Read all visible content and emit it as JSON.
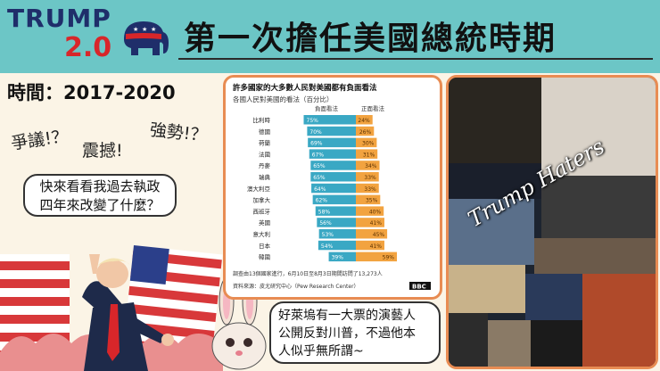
{
  "header": {
    "logo_word": "TRUMP",
    "logo_version": "2.0",
    "title": "第一次擔任美國總統時期"
  },
  "period": "時間：2017-2020",
  "shouts": [
    "爭議!？",
    "震撼!",
    "強勢!？"
  ],
  "speech_bubble": [
    "快來看看我過去執政",
    "四年來改變了什麼？"
  ],
  "rabbit_bubble": [
    "好萊塢有一大票的演藝人",
    "公開反對川普，不過他本",
    "人似乎無所謂~"
  ],
  "haters_label": "Trump Haters",
  "colors": {
    "negative": "#3aa8c4",
    "positive": "#f2a340",
    "accent": "#e88c53",
    "header": "#6cc6c6"
  },
  "chart_data": {
    "type": "bar",
    "title": "許多國家的大多數人民對美國都有負面看法",
    "subtitle": "各國人民對美國的看法（百分比）",
    "legend": [
      "負面看法",
      "正面看法"
    ],
    "categories": [
      "比利時",
      "德國",
      "荷蘭",
      "法國",
      "丹麥",
      "瑞典",
      "澳大利亞",
      "加拿大",
      "西班牙",
      "英國",
      "意大利",
      "日本",
      "韓國"
    ],
    "series": [
      {
        "name": "負面看法",
        "values": [
          75,
          70,
          69,
          67,
          65,
          65,
          64,
          62,
          58,
          56,
          53,
          54,
          39
        ]
      },
      {
        "name": "正面看法",
        "values": [
          24,
          26,
          30,
          31,
          34,
          33,
          33,
          35,
          40,
          41,
          45,
          41,
          59
        ]
      }
    ],
    "value_labels_neg": [
      "75%",
      "70%",
      "69%",
      "67%",
      "65%",
      "65%",
      "64%",
      "62%",
      "58%",
      "56%",
      "53%",
      "54%",
      "39%"
    ],
    "value_labels_pos": [
      "24%",
      "26%",
      "30%",
      "31%",
      "34%",
      "33%",
      "33%",
      "35%",
      "40%",
      "41%",
      "45%",
      "41%",
      "59%"
    ],
    "note": "調查由13個國家進行，6月10日至8月3日期間訪問了13,273人",
    "source": "資料來源：皮尤研究中心（Pew Research Center）",
    "brand": "BBC"
  }
}
